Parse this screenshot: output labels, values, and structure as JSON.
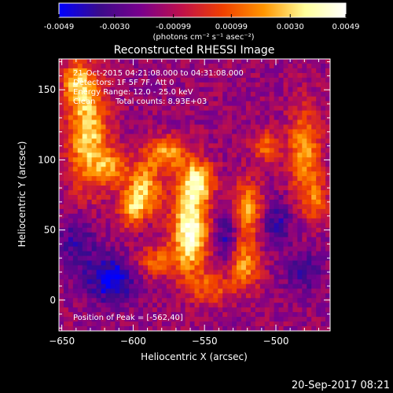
{
  "colorbar": {
    "tick_labels": [
      "-0.0049",
      "-0.0030",
      "-0.00099",
      "0.00099",
      "0.0030",
      "0.0049"
    ],
    "tick_values": [
      -0.0049,
      -0.003,
      -0.00099,
      0.00099,
      0.003,
      0.0049
    ],
    "range": [
      -0.0049,
      0.0049
    ],
    "unit_label": "(photons cm⁻² s⁻¹ asec⁻²)",
    "colors": [
      "#0000ff",
      "#3b0b8a",
      "#7a008c",
      "#c0104a",
      "#f04000",
      "#ff9500",
      "#ffff9a",
      "#ffffff"
    ]
  },
  "chart_data": {
    "type": "heatmap",
    "title": "Reconstructed RHESSI Image",
    "xlabel": "Heliocentric X (arcsec)",
    "ylabel": "Heliocentric Y (arcsec)",
    "xlim": [
      -652,
      -462
    ],
    "ylim": [
      -22,
      172
    ],
    "x_ticks": [
      -650,
      -600,
      -550,
      -500
    ],
    "y_ticks": [
      0,
      50,
      100,
      150
    ],
    "x_tick_labels": [
      "−650",
      "−600",
      "−550",
      "−500"
    ],
    "y_tick_labels": [
      "0",
      "50",
      "100",
      "150"
    ],
    "peak": [
      -562,
      40
    ],
    "sources": [
      {
        "x": -560,
        "y": 50,
        "amp": 1.0,
        "sx": 9,
        "sy": 22
      },
      {
        "x": -555,
        "y": 85,
        "amp": 0.75,
        "sx": 8,
        "sy": 10
      },
      {
        "x": -575,
        "y": 105,
        "amp": 0.6,
        "sx": 9,
        "sy": 8
      },
      {
        "x": -590,
        "y": 80,
        "amp": 0.55,
        "sx": 8,
        "sy": 18
      },
      {
        "x": -600,
        "y": 65,
        "amp": 0.65,
        "sx": 7,
        "sy": 14
      },
      {
        "x": -585,
        "y": 28,
        "amp": 0.45,
        "sx": 10,
        "sy": 8
      },
      {
        "x": -632,
        "y": 120,
        "amp": 0.8,
        "sx": 10,
        "sy": 28
      },
      {
        "x": -640,
        "y": 155,
        "amp": 0.55,
        "sx": 7,
        "sy": 10
      },
      {
        "x": -615,
        "y": 95,
        "amp": 0.5,
        "sx": 8,
        "sy": 9
      },
      {
        "x": -520,
        "y": 65,
        "amp": 0.65,
        "sx": 8,
        "sy": 14
      },
      {
        "x": -522,
        "y": 25,
        "amp": 0.6,
        "sx": 8,
        "sy": 12
      },
      {
        "x": -507,
        "y": 110,
        "amp": 0.45,
        "sx": 7,
        "sy": 8
      },
      {
        "x": -545,
        "y": 8,
        "amp": 0.4,
        "sx": 10,
        "sy": 8
      },
      {
        "x": -480,
        "y": 105,
        "amp": 0.65,
        "sx": 8,
        "sy": 22
      },
      {
        "x": -472,
        "y": 70,
        "amp": 0.4,
        "sx": 6,
        "sy": 10
      },
      {
        "x": -615,
        "y": 15,
        "amp": -0.55,
        "sx": 12,
        "sy": 12
      },
      {
        "x": -595,
        "y": 50,
        "amp": -0.3,
        "sx": 8,
        "sy": 10
      },
      {
        "x": -535,
        "y": 45,
        "amp": -0.4,
        "sx": 6,
        "sy": 14
      },
      {
        "x": -500,
        "y": 55,
        "amp": -0.35,
        "sx": 8,
        "sy": 12
      },
      {
        "x": -640,
        "y": 40,
        "amp": -0.3,
        "sx": 10,
        "sy": 14
      },
      {
        "x": -480,
        "y": 20,
        "amp": -0.3,
        "sx": 10,
        "sy": 10
      }
    ]
  },
  "info": {
    "time_range": "21-Oct-2015 04:21:08.000 to 04:31:08.000",
    "detectors": "Detectors: 1F 5F 7F, Att 0",
    "energy": "Energy Range: 12.0 - 25.0 keV",
    "method": "Clean",
    "counts": "Total counts: 8.93E+03",
    "peak_text": "Position of Peak = [-562,40]"
  },
  "footer": {
    "timestamp": "20-Sep-2017 08:21"
  }
}
